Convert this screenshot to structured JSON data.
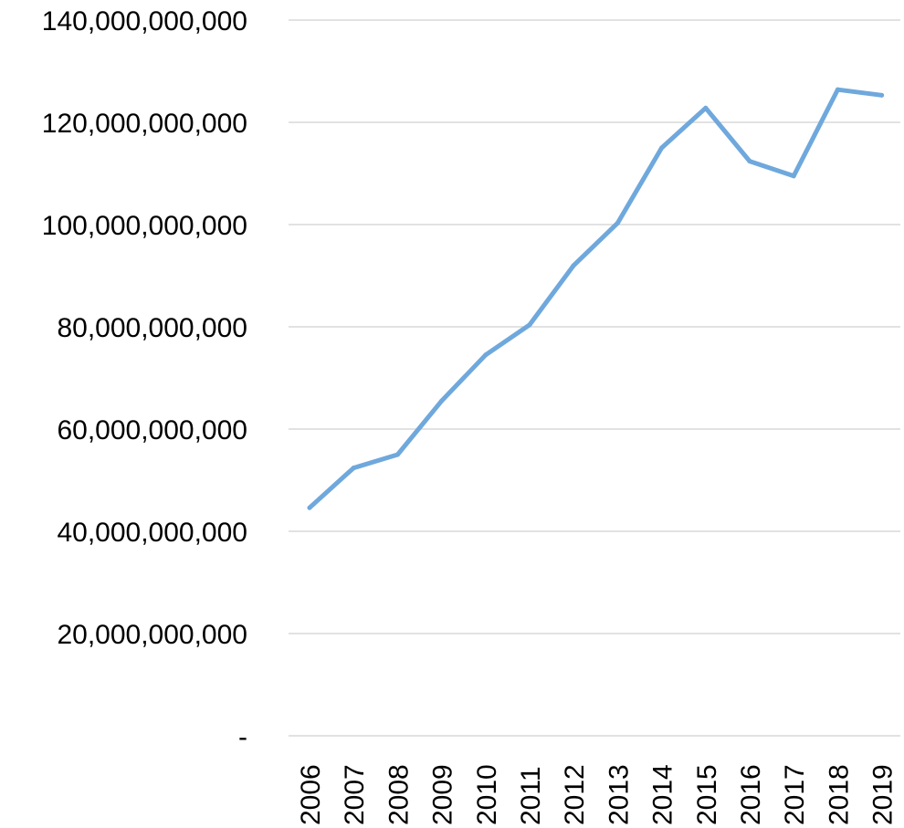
{
  "chart_data": {
    "type": "line",
    "title": "",
    "xlabel": "",
    "ylabel": "",
    "categories": [
      "2006",
      "2007",
      "2008",
      "2009",
      "2010",
      "2011",
      "2012",
      "2013",
      "2014",
      "2015",
      "2016",
      "2017",
      "2018",
      "2019"
    ],
    "series": [
      {
        "values": [
          44600000000,
          52400000000,
          55000000000,
          65500000000,
          74500000000,
          80400000000,
          92000000000,
          100300000000,
          115000000000,
          122800000000,
          112400000000,
          109500000000,
          126400000000,
          125300000000
        ],
        "color": "#6fa8dc"
      }
    ],
    "ylim": [
      0,
      140000000000
    ],
    "y_ticks": [
      {
        "value": 0,
        "label": "-"
      },
      {
        "value": 20000000000,
        "label": "20,000,000,000"
      },
      {
        "value": 40000000000,
        "label": "40,000,000,000"
      },
      {
        "value": 60000000000,
        "label": "60,000,000,000"
      },
      {
        "value": 80000000000,
        "label": "80,000,000,000"
      },
      {
        "value": 100000000000,
        "label": "100,000,000,000"
      },
      {
        "value": 120000000000,
        "label": "120,000,000,000"
      },
      {
        "value": 140000000000,
        "label": "140,000,000,000"
      }
    ],
    "grid": true,
    "legend": "none",
    "colors": {
      "gridline": "#d9d9d9",
      "text": "#000000"
    }
  }
}
